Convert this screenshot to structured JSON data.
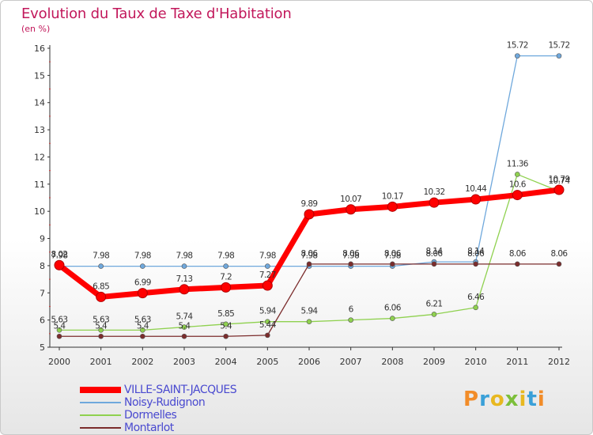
{
  "header": {
    "title": "Evolution du Taux de Taxe d'Habitation",
    "unit": "(en %)"
  },
  "brand": {
    "text": "Proxiti",
    "letter_colors": [
      "#f28c28",
      "#3aa0d8",
      "#e8b820",
      "#7cbf3a",
      "#e8b820",
      "#3aa0d8",
      "#f28c28"
    ]
  },
  "chart_data": {
    "type": "line",
    "title": "Evolution du Taux de Taxe d'Habitation",
    "ylabel": "(en %)",
    "xlabel": "",
    "x": [
      2000,
      2001,
      2002,
      2003,
      2004,
      2005,
      2006,
      2007,
      2008,
      2009,
      2010,
      2011,
      2012
    ],
    "ylim": [
      5,
      16
    ],
    "yticks": [
      5,
      6,
      7,
      8,
      9,
      10,
      11,
      12,
      13,
      14,
      15,
      16
    ],
    "grid": false,
    "legend_position": "bottom-left",
    "series": [
      {
        "name": "VILLE-SAINT-JACQUES",
        "color": "#ff0000",
        "emphasis": true,
        "values": [
          8.02,
          6.85,
          6.99,
          7.13,
          7.2,
          7.27,
          9.89,
          10.07,
          10.17,
          10.32,
          10.44,
          10.6,
          10.79
        ],
        "labels": [
          "8.02",
          "6.85",
          "6.99",
          "7.13",
          "7.2",
          "7.27",
          "9.89",
          "10.07",
          "10.17",
          "10.32",
          "10.44",
          "10.6",
          "10.79"
        ]
      },
      {
        "name": "Noisy-Rudignon",
        "color": "#6fa8dc",
        "emphasis": false,
        "values": [
          7.98,
          7.98,
          7.98,
          7.98,
          7.98,
          7.98,
          7.98,
          7.98,
          7.98,
          8.14,
          8.14,
          15.72,
          15.72
        ],
        "labels": [
          "7.98",
          "7.98",
          "7.98",
          "7.98",
          "7.98",
          "7.98",
          "7.98",
          "7.98",
          "7.98",
          "8.14",
          "8.14",
          "15.72",
          "15.72"
        ]
      },
      {
        "name": "Dormelles",
        "color": "#8fd14f",
        "emphasis": false,
        "values": [
          5.63,
          5.63,
          5.63,
          5.74,
          5.85,
          5.94,
          5.94,
          6.0,
          6.06,
          6.21,
          6.46,
          11.36,
          10.74
        ],
        "labels": [
          "5.63",
          "5.63",
          "5.63",
          "5.74",
          "5.85",
          "5.94",
          "5.94",
          "6",
          "6.06",
          "6.21",
          "6.46",
          "11.36",
          "10.74"
        ]
      },
      {
        "name": "Montarlot",
        "color": "#7b2c2c",
        "emphasis": false,
        "values": [
          5.4,
          5.4,
          5.4,
          5.4,
          5.4,
          5.44,
          8.06,
          8.06,
          8.06,
          8.06,
          8.06,
          8.06,
          8.06
        ],
        "labels": [
          "5.4",
          "5.4",
          "5.4",
          "5.4",
          "5.4",
          "5.44",
          "8.06",
          "8.06",
          "8.06",
          "8.06",
          "8.06",
          "8.06",
          "8.06"
        ]
      }
    ]
  }
}
